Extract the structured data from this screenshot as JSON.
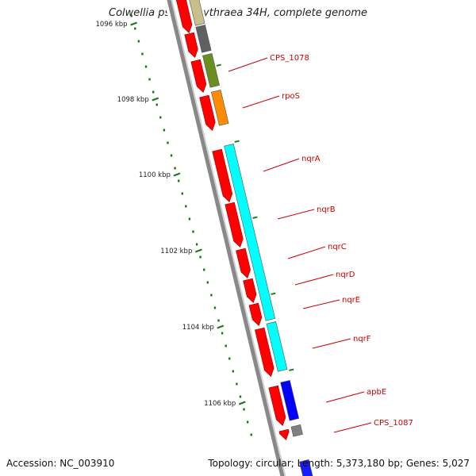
{
  "title": "Colwellia psychrerythraea 34H, complete genome",
  "accession": "Accession: NC_003910",
  "topology": "Topology: circular; Length: 5,373,180 bp; Genes: 5,027",
  "ruler": {
    "labels": [
      "1096 kbp",
      "1098 kbp",
      "1100 kbp",
      "1102 kbp",
      "1104 kbp",
      "1106 kbp"
    ]
  },
  "genes": [
    {
      "name": "CPS_1078",
      "color": "#6b8e23"
    },
    {
      "name": "rpoS",
      "color": "#ff8c00"
    },
    {
      "name": "nqrA",
      "color": "#00ffff"
    },
    {
      "name": "nqrB",
      "color": "#00ffff"
    },
    {
      "name": "nqrC",
      "color": "#00ffff"
    },
    {
      "name": "nqrD",
      "color": "#00ffff"
    },
    {
      "name": "nqrE",
      "color": "#00ffff"
    },
    {
      "name": "nqrF",
      "color": "#00ffff"
    },
    {
      "name": "apbE",
      "color": "#0000ff"
    },
    {
      "name": "CPS_1087",
      "color": "#808080"
    }
  ],
  "colors": {
    "cds": "#ff0000",
    "label": "#cc0000",
    "tick": "#1a7a1a",
    "backbone": "#888888"
  }
}
